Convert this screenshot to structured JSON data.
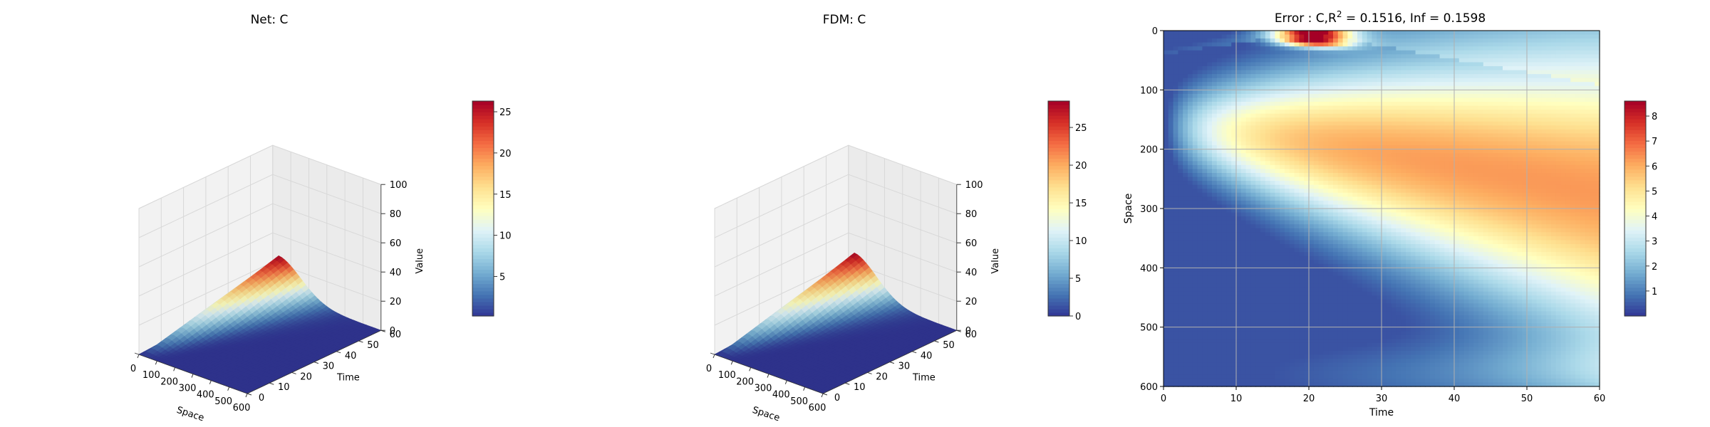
{
  "chart_data": [
    {
      "type": "surface3d",
      "title": "Net: C",
      "xlabel": "Space",
      "ylabel": "Time",
      "zlabel": "Value",
      "xlim": [
        0,
        600
      ],
      "ylim": [
        0,
        60
      ],
      "zlim": [
        0,
        100
      ],
      "x_ticks": [
        "0",
        "100",
        "200",
        "300",
        "400",
        "500",
        "600"
      ],
      "y_ticks": [
        "0",
        "10",
        "20",
        "30",
        "40",
        "50",
        "60"
      ],
      "z_ticks": [
        "0",
        "20",
        "40",
        "60",
        "80",
        "100"
      ],
      "colormap": "RdYlBu_r",
      "surface_peak": {
        "space": 20,
        "time": 60,
        "value": 26
      },
      "colorbar": {
        "range": [
          0.2,
          26.3
        ],
        "ticks": [
          "5",
          "10",
          "15",
          "20",
          "25"
        ]
      },
      "grid": true
    },
    {
      "type": "surface3d",
      "title": "FDM: C",
      "xlabel": "Space",
      "ylabel": "Time",
      "zlabel": "Value",
      "xlim": [
        0,
        600
      ],
      "ylim": [
        0,
        60
      ],
      "zlim": [
        0,
        100
      ],
      "x_ticks": [
        "0",
        "100",
        "200",
        "300",
        "400",
        "500",
        "600"
      ],
      "y_ticks": [
        "0",
        "10",
        "20",
        "30",
        "40",
        "50",
        "60"
      ],
      "z_ticks": [
        "0",
        "20",
        "40",
        "60",
        "80",
        "100"
      ],
      "colormap": "RdYlBu_r",
      "surface_peak": {
        "space": 20,
        "time": 60,
        "value": 28
      },
      "colorbar": {
        "range": [
          0,
          28.5
        ],
        "ticks": [
          "0",
          "5",
          "10",
          "15",
          "20",
          "25"
        ]
      },
      "grid": true
    },
    {
      "type": "heatmap",
      "title_prefix": "Error : C,R",
      "title_superscript": "2",
      "title_suffix": " = 0.1516, Inf = 0.1598",
      "xlabel": "Time",
      "ylabel": "Space",
      "xlim": [
        0,
        60
      ],
      "ylim": [
        600,
        0
      ],
      "x_ticks": [
        "0",
        "10",
        "20",
        "30",
        "40",
        "50",
        "60"
      ],
      "y_ticks": [
        "0",
        "100",
        "200",
        "300",
        "400",
        "500",
        "600"
      ],
      "colormap": "RdYlBu_r",
      "colorbar": {
        "range": [
          0,
          8.6
        ],
        "ticks": [
          "1",
          "2",
          "3",
          "4",
          "5",
          "6",
          "7",
          "8"
        ]
      },
      "grid": true
    }
  ]
}
